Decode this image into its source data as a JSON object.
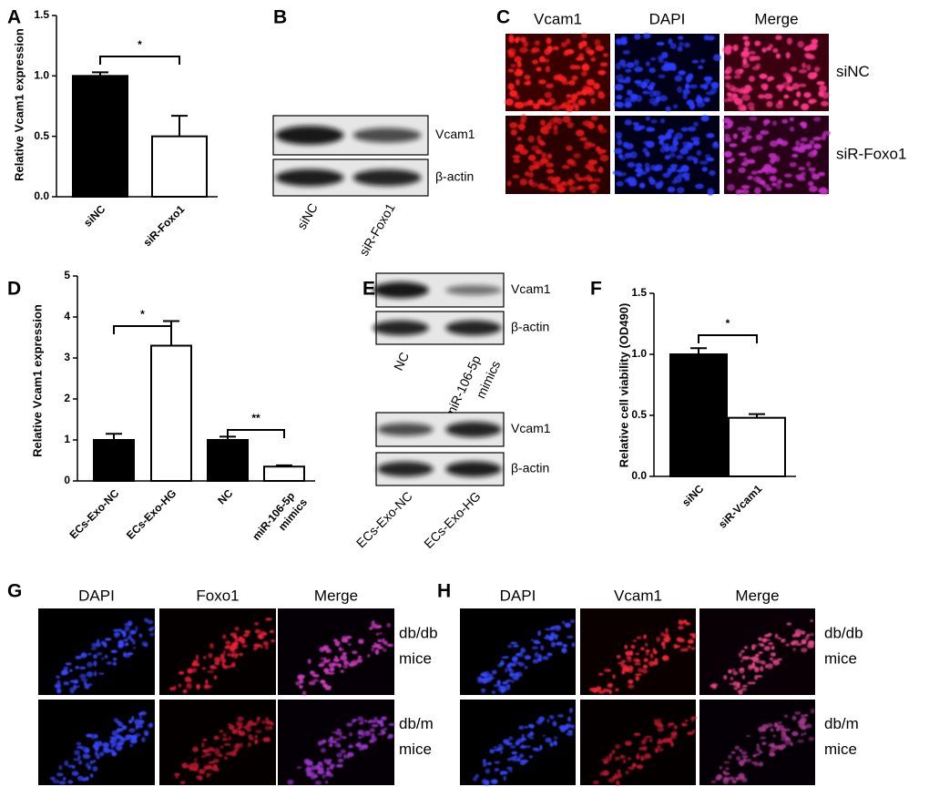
{
  "panel_labels": [
    "A",
    "B",
    "C",
    "D",
    "E",
    "F",
    "G",
    "H"
  ],
  "chart_data": [
    {
      "type": "bar",
      "y_label": "Relative Vcam1 expression",
      "categories": [
        "siNC",
        "siR-Foxo1"
      ],
      "values": [
        1.0,
        0.5
      ],
      "errors": [
        0.03,
        0.17
      ],
      "colors": [
        "#000000",
        "#ffffff"
      ],
      "ylim": [
        0,
        1.5
      ],
      "yticks": [
        {
          "value": 0,
          "label": "0.0"
        },
        {
          "value": 0.5,
          "label": "0.5"
        },
        {
          "value": 1,
          "label": "1.0"
        },
        {
          "value": 1.5,
          "label": "1.5"
        }
      ],
      "significance": [
        "*"
      ]
    },
    {
      "type": "bar",
      "y_label": "Relative Vcam1 expression",
      "categories": [
        "ECs-Exo-NC",
        "ECs-Exo-HG",
        "NC",
        "miR-106-5p mimics"
      ],
      "values": [
        1.0,
        3.3,
        1.0,
        0.35
      ],
      "errors": [
        0.15,
        0.6,
        0.08,
        0.03
      ],
      "colors": [
        "#000000",
        "#ffffff",
        "#000000",
        "#ffffff"
      ],
      "ylim": [
        0,
        5
      ],
      "yticks": [
        0,
        1,
        2,
        3,
        4,
        5
      ],
      "significance": [
        "*",
        "**"
      ]
    },
    {
      "type": "bar",
      "y_label": "Relative cell viability (OD490)",
      "categories": [
        "siNC",
        "siR-Vcam1"
      ],
      "values": [
        1.0,
        0.48
      ],
      "errors": [
        0.05,
        0.03
      ],
      "colors": [
        "#000000",
        "#ffffff"
      ],
      "ylim": [
        0,
        1.5
      ],
      "yticks": [
        {
          "value": 0,
          "label": "0.0"
        },
        {
          "value": 0.5,
          "label": "0.5"
        },
        {
          "value": 1,
          "label": "1.0"
        },
        {
          "value": 1.5,
          "label": "1.5"
        }
      ],
      "significance": [
        "*"
      ]
    }
  ],
  "blots": [
    {
      "proteins": [
        "Vcam1",
        "β-actin"
      ],
      "lanes": [
        "siNC",
        "siR-Foxo1"
      ]
    },
    {
      "proteins": [
        "Vcam1",
        "β-actin"
      ],
      "lanes": [
        "NC",
        "miR-106-5p mimics"
      ]
    },
    {
      "proteins": [
        "Vcam1",
        "β-actin"
      ],
      "lanes": [
        "ECs-Exo-NC",
        "ECs-Exo-HG"
      ]
    }
  ],
  "micrographs": [
    {
      "columns": [
        "Vcam1",
        "DAPI",
        "Merge"
      ],
      "rows": [
        "siNC",
        "siR-Foxo1"
      ]
    },
    {
      "columns": [
        "DAPI",
        "Foxo1",
        "Merge"
      ],
      "rows": [
        "db/db mice",
        "db/m mice"
      ]
    },
    {
      "columns": [
        "DAPI",
        "Vcam1",
        "Merge"
      ],
      "rows": [
        "db/db mice",
        "db/m mice"
      ]
    }
  ]
}
